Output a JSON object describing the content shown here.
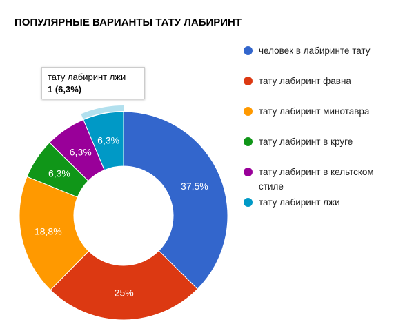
{
  "chart_data": {
    "type": "pie",
    "title": "ПОПУЛЯРНЫЕ ВАРИАНТЫ ТАТУ ЛАБИРИНТ",
    "donut": true,
    "slices": [
      {
        "name": "человек в лабиринте тату",
        "value": 37.5,
        "label": "37,5%",
        "color": "#3366cc"
      },
      {
        "name": "тату лабиринт фавна",
        "value": 25,
        "label": "25%",
        "color": "#dc3912"
      },
      {
        "name": "тату лабиринт минотавра",
        "value": 18.8,
        "label": "18,8%",
        "color": "#ff9900"
      },
      {
        "name": "тату лабиринт в круге",
        "value": 6.3,
        "label": "6,3%",
        "color": "#109618"
      },
      {
        "name": "тату лабиринт в кельтском стиле",
        "value": 6.3,
        "label": "6,3%",
        "color": "#990099"
      },
      {
        "name": "тату лабиринт лжи",
        "value": 6.3,
        "label": "6,3%",
        "color": "#0099c6"
      }
    ],
    "legend_position": "right",
    "tooltip": {
      "title": "тату лабиринт лжи",
      "value": "1 (6,3%)"
    }
  }
}
